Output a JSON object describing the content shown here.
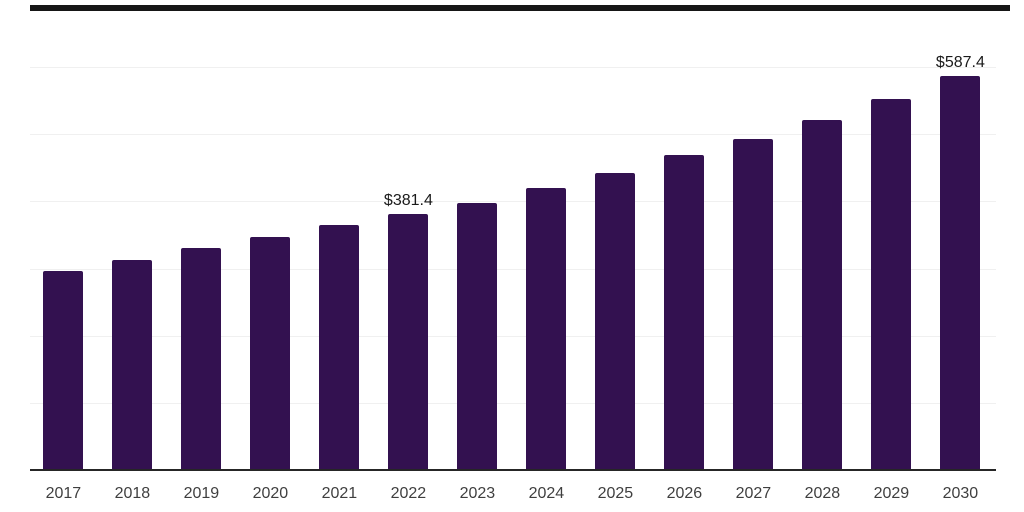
{
  "chart_data": {
    "type": "bar",
    "categories": [
      "2017",
      "2018",
      "2019",
      "2020",
      "2021",
      "2022",
      "2023",
      "2024",
      "2025",
      "2026",
      "2027",
      "2028",
      "2029",
      "2030"
    ],
    "values": [
      296.4,
      312.8,
      330.7,
      347.1,
      365.0,
      381.4,
      397.9,
      419.7,
      442.7,
      469.6,
      492.8,
      521.9,
      552.4,
      587.4
    ],
    "data_labels": [
      {
        "category": "2022",
        "text": "$381.4"
      },
      {
        "category": "2030",
        "text": "$587.4"
      }
    ],
    "ylim": [
      0,
      620
    ],
    "gridlines": [
      100,
      200,
      300,
      400,
      500,
      600
    ],
    "grid": "horizontal-only",
    "legend": "none",
    "xlabel": "",
    "ylabel": "",
    "colors": {
      "bar": "#331150",
      "gridline": "#f0f0f0",
      "axis_line": "#262626",
      "top_border": "#161616",
      "tick_label": "#3f3f3f",
      "data_label": "#1a1a1a",
      "background": "#ffffff"
    }
  }
}
